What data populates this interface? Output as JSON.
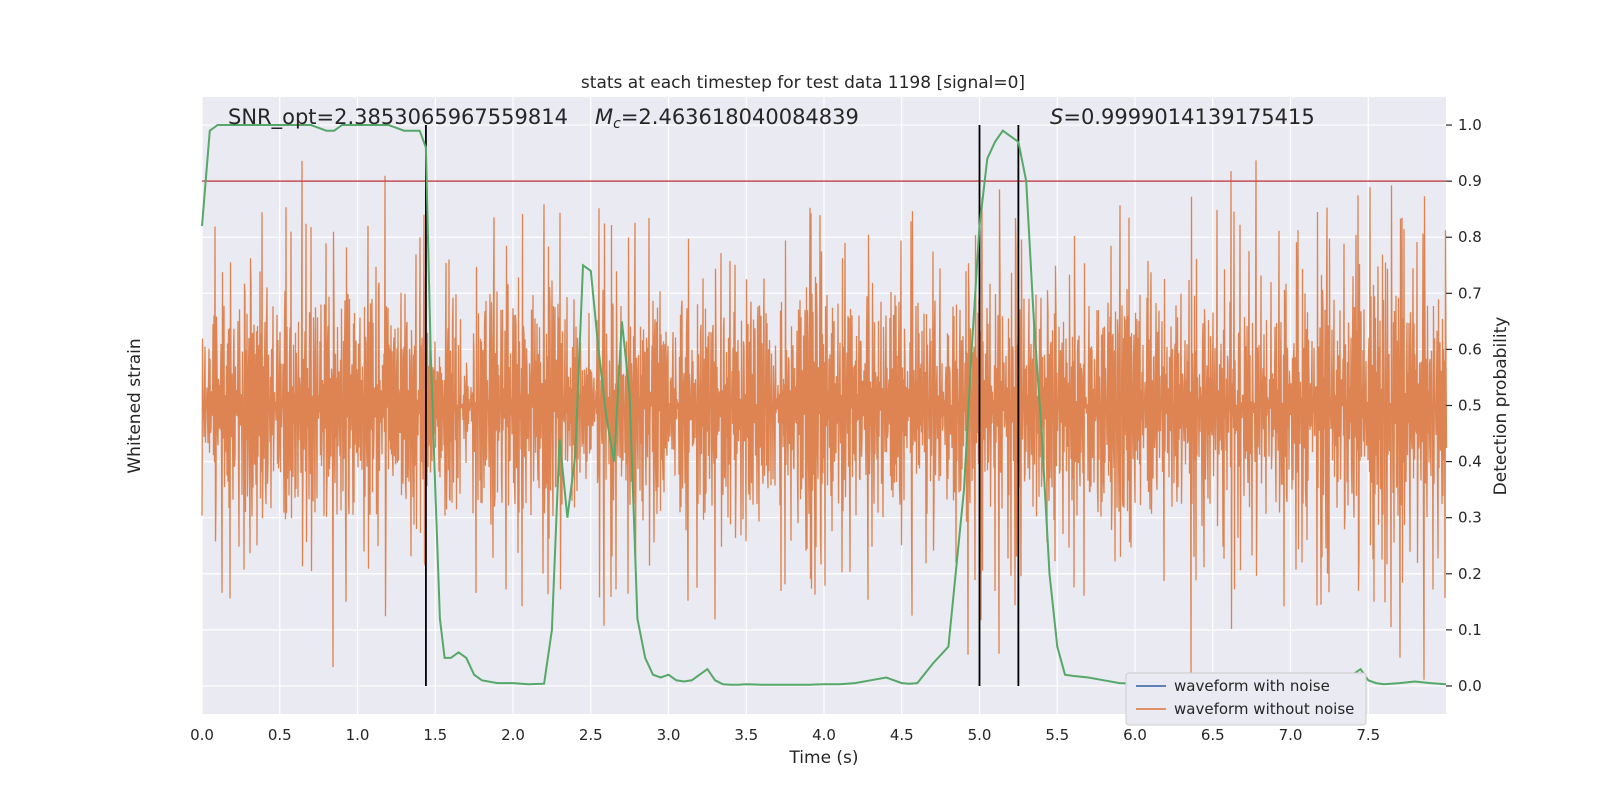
{
  "chart_data": {
    "type": "line",
    "title": "stats at each timestep for test data 1198 [signal=0]",
    "xlabel": "Time (s)",
    "ylabel_left": "Whitened strain",
    "ylabel_right": "Detection probability",
    "xlim": [
      0,
      8
    ],
    "ylim_right": [
      -0.05,
      1.05
    ],
    "x_ticks": [
      "0.0",
      "0.5",
      "1.0",
      "1.5",
      "2.0",
      "2.5",
      "3.0",
      "3.5",
      "4.0",
      "4.5",
      "5.0",
      "5.5",
      "6.0",
      "6.5",
      "7.0",
      "7.5"
    ],
    "y_ticks_right": [
      "0.0",
      "0.1",
      "0.2",
      "0.3",
      "0.4",
      "0.5",
      "0.6",
      "0.7",
      "0.8",
      "0.9",
      "1.0"
    ],
    "annotations": {
      "snr": "SNR_opt=2.3853065967559814",
      "mc_symbol": "M",
      "mc_sub": "c",
      "mc_value": "=2.463618040084839",
      "s_symbol": "S",
      "s_value": "=0.9999014139175415"
    },
    "threshold": 0.9,
    "vertical_lines": [
      1.44,
      5.0,
      5.25
    ],
    "legend": {
      "placement": "lower-right",
      "entries": [
        {
          "label": "waveform with noise",
          "color": "#4c72b0"
        },
        {
          "label": "waveform without noise",
          "color": "#dd8452"
        }
      ]
    },
    "colors": {
      "background": "#eaeaf2",
      "grid": "#ffffff",
      "noise_waveform": "#dd8452",
      "probability": "#55a868",
      "threshold": "#c44e52",
      "markers": "#000000"
    },
    "noise_band": {
      "center": 0.5,
      "dense_halfwidth": 0.2,
      "spike_max": 0.99,
      "spike_min": 0.0
    },
    "series": [
      {
        "name": "Detection probability",
        "x": [
          0.0,
          0.05,
          0.1,
          0.2,
          0.3,
          0.4,
          0.5,
          0.6,
          0.7,
          0.8,
          0.85,
          0.9,
          1.0,
          1.1,
          1.2,
          1.3,
          1.35,
          1.4,
          1.44,
          1.47,
          1.5,
          1.53,
          1.56,
          1.6,
          1.65,
          1.7,
          1.75,
          1.8,
          1.9,
          2.0,
          2.1,
          2.2,
          2.25,
          2.3,
          2.35,
          2.4,
          2.45,
          2.5,
          2.55,
          2.6,
          2.65,
          2.7,
          2.75,
          2.8,
          2.85,
          2.9,
          2.95,
          3.0,
          3.05,
          3.1,
          3.15,
          3.2,
          3.25,
          3.3,
          3.35,
          3.4,
          3.45,
          3.5,
          3.6,
          3.7,
          3.8,
          3.9,
          4.0,
          4.1,
          4.2,
          4.3,
          4.4,
          4.5,
          4.55,
          4.6,
          4.7,
          4.8,
          4.9,
          4.95,
          5.0,
          5.05,
          5.1,
          5.15,
          5.2,
          5.25,
          5.3,
          5.35,
          5.4,
          5.45,
          5.5,
          5.55,
          5.6,
          5.7,
          5.8,
          5.9,
          6.0,
          6.1,
          6.2,
          6.3,
          6.4,
          6.5,
          6.6,
          6.7,
          6.8,
          6.9,
          7.0,
          7.05,
          7.1,
          7.2,
          7.25,
          7.3,
          7.35,
          7.4,
          7.45,
          7.5,
          7.55,
          7.6,
          7.7,
          7.8,
          7.9,
          8.0
        ],
        "values": [
          0.82,
          0.99,
          1.0,
          1.0,
          1.0,
          1.0,
          1.0,
          1.0,
          1.0,
          0.99,
          0.99,
          1.0,
          1.0,
          1.0,
          1.0,
          0.99,
          0.99,
          0.99,
          0.96,
          0.6,
          0.35,
          0.12,
          0.05,
          0.05,
          0.06,
          0.05,
          0.02,
          0.01,
          0.005,
          0.005,
          0.003,
          0.004,
          0.1,
          0.44,
          0.3,
          0.41,
          0.75,
          0.74,
          0.6,
          0.48,
          0.4,
          0.65,
          0.52,
          0.12,
          0.05,
          0.02,
          0.015,
          0.02,
          0.01,
          0.008,
          0.01,
          0.02,
          0.03,
          0.01,
          0.003,
          0.002,
          0.002,
          0.003,
          0.002,
          0.002,
          0.002,
          0.002,
          0.003,
          0.003,
          0.005,
          0.01,
          0.015,
          0.005,
          0.004,
          0.005,
          0.04,
          0.07,
          0.35,
          0.6,
          0.82,
          0.94,
          0.97,
          0.99,
          0.98,
          0.97,
          0.9,
          0.65,
          0.45,
          0.2,
          0.07,
          0.02,
          0.018,
          0.015,
          0.01,
          0.005,
          0.004,
          0.005,
          0.01,
          0.01,
          0.005,
          0.004,
          0.02,
          0.01,
          0.01,
          0.02,
          0.02,
          0.01,
          0.005,
          0.005,
          0.005,
          0.01,
          0.01,
          0.02,
          0.03,
          0.01,
          0.005,
          0.003,
          0.005,
          0.008,
          0.005,
          0.003
        ]
      }
    ]
  }
}
